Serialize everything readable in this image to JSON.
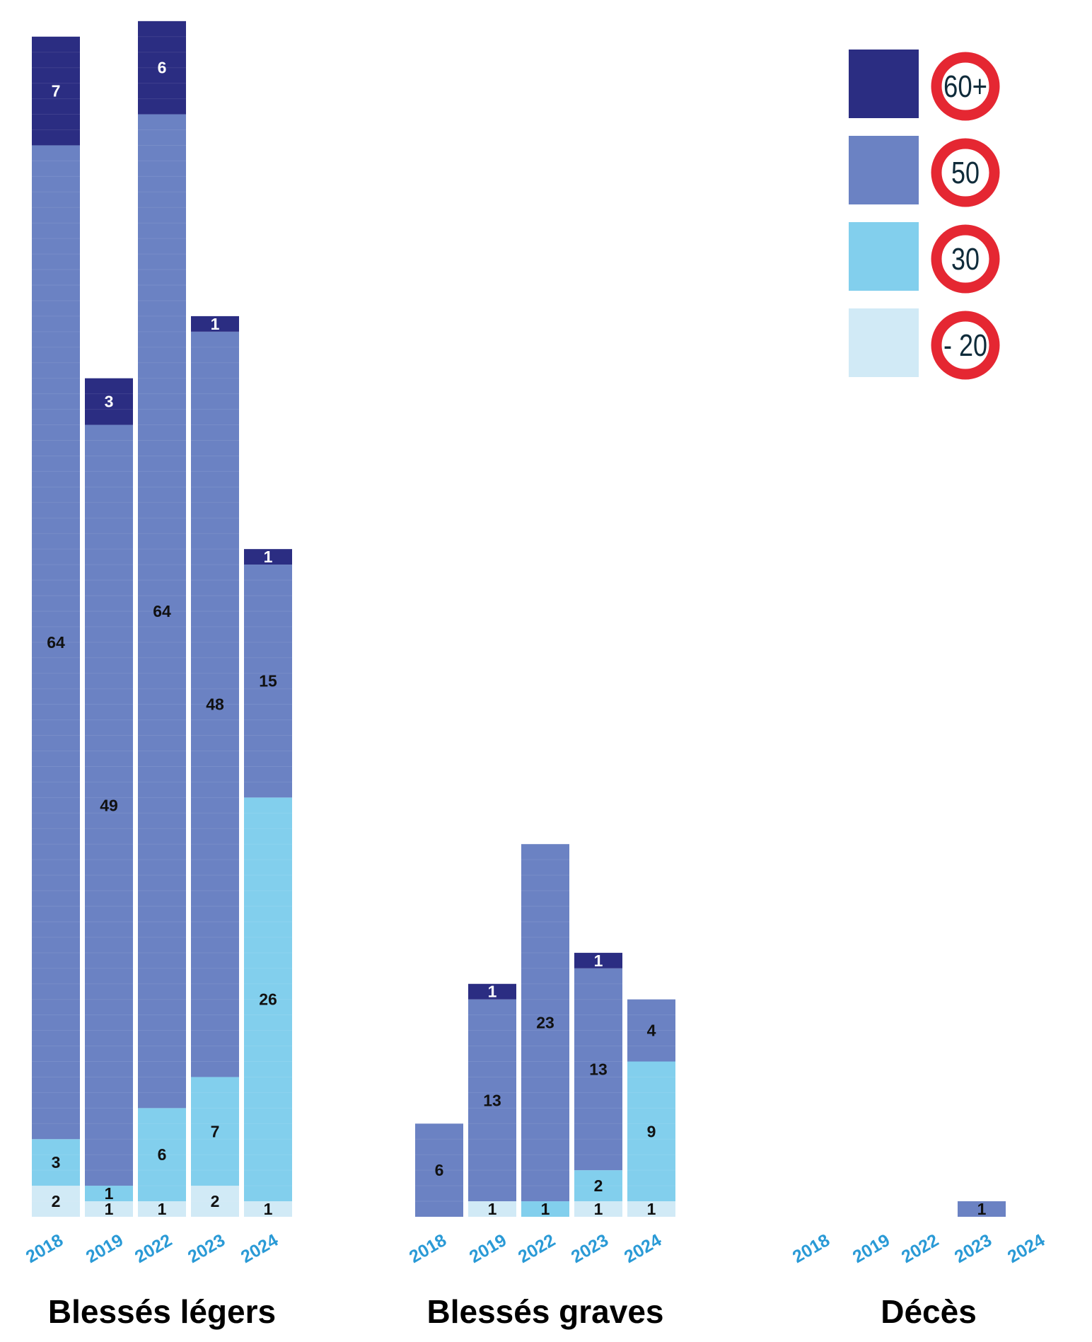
{
  "legend": [
    {
      "key": "60+",
      "sign_label": "60+",
      "color": "#2b2d82"
    },
    {
      "key": "50",
      "sign_label": "50",
      "color": "#6b82c3"
    },
    {
      "key": "30",
      "sign_label": "30",
      "color": "#82cfed"
    },
    {
      "key": "-20",
      "sign_label": "- 20",
      "color": "#d1eaf6"
    }
  ],
  "colors": {
    "sign_ring": "#e52732",
    "tick_label": "#2a9ad6",
    "label_light": "#ffffff",
    "label_dark": "#111111"
  },
  "chart_data": [
    {
      "type": "bar",
      "stacked": true,
      "title": "Blessés légers",
      "categories": [
        "2018",
        "2019",
        "2022",
        "2023",
        "2024"
      ],
      "series": [
        {
          "name": "- 20",
          "values": [
            2,
            1,
            1,
            2,
            1
          ]
        },
        {
          "name": "30",
          "values": [
            3,
            1,
            6,
            7,
            26
          ]
        },
        {
          "name": "50",
          "values": [
            64,
            49,
            64,
            48,
            15
          ]
        },
        {
          "name": "60+",
          "values": [
            7,
            3,
            6,
            1,
            1
          ]
        }
      ]
    },
    {
      "type": "bar",
      "stacked": true,
      "title": "Blessés graves",
      "categories": [
        "2018",
        "2019",
        "2022",
        "2023",
        "2024"
      ],
      "series": [
        {
          "name": "- 20",
          "values": [
            0,
            1,
            0,
            1,
            1
          ]
        },
        {
          "name": "30",
          "values": [
            0,
            0,
            1,
            2,
            9
          ]
        },
        {
          "name": "50",
          "values": [
            6,
            13,
            23,
            13,
            4
          ]
        },
        {
          "name": "60+",
          "values": [
            0,
            1,
            0,
            1,
            0
          ]
        }
      ]
    },
    {
      "type": "bar",
      "stacked": true,
      "title": "Décès",
      "categories": [
        "2018",
        "2019",
        "2022",
        "2023",
        "2024"
      ],
      "series": [
        {
          "name": "- 20",
          "values": [
            0,
            0,
            0,
            0,
            0
          ]
        },
        {
          "name": "30",
          "values": [
            0,
            0,
            0,
            0,
            0
          ]
        },
        {
          "name": "50",
          "values": [
            0,
            0,
            0,
            1,
            0
          ]
        },
        {
          "name": "60+",
          "values": [
            0,
            0,
            0,
            0,
            0
          ]
        }
      ]
    }
  ]
}
